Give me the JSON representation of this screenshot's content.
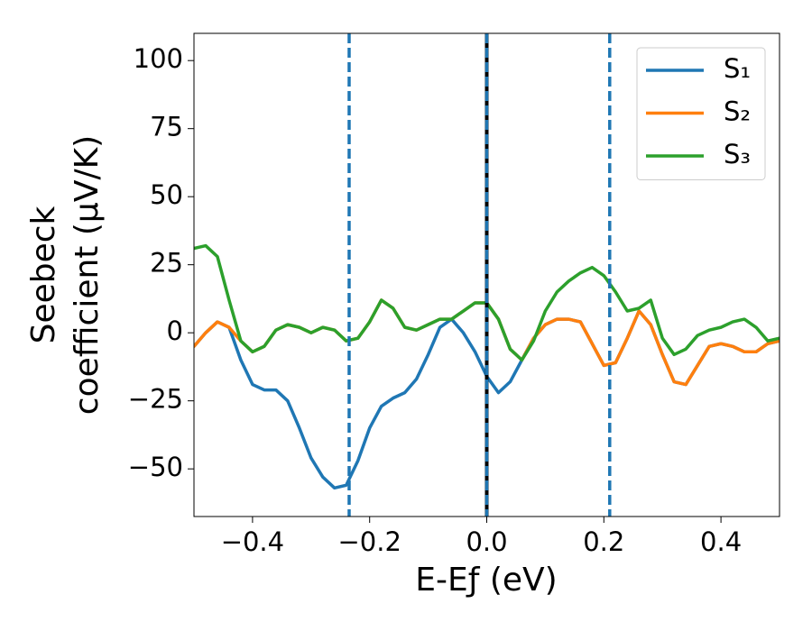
{
  "chart_data": {
    "type": "line",
    "xlabel": "E-Eƒ (eV)",
    "ylabel": [
      "Seebeck",
      "coefficient  (μV/K)"
    ],
    "x": [
      -0.5,
      -0.48,
      -0.46,
      -0.44,
      -0.42,
      -0.4,
      -0.38,
      -0.36,
      -0.34,
      -0.32,
      -0.3,
      -0.28,
      -0.26,
      -0.24,
      -0.22,
      -0.2,
      -0.18,
      -0.16,
      -0.14,
      -0.12,
      -0.1,
      -0.08,
      -0.06,
      -0.04,
      -0.02,
      0,
      0.02,
      0.04,
      0.06,
      0.08,
      0.1,
      0.12,
      0.14,
      0.16,
      0.18,
      0.2,
      0.22,
      0.24,
      0.26,
      0.28,
      0.3,
      0.32,
      0.34,
      0.36,
      0.38,
      0.4,
      0.42,
      0.44,
      0.46,
      0.48,
      0.5
    ],
    "series": [
      {
        "name": "S₁",
        "color": "#1f77b4",
        "values": [
          -5,
          0,
          4,
          2,
          -10,
          -19,
          -21,
          -21,
          -25,
          -35,
          -46,
          -53,
          -57,
          -56,
          -47,
          -35,
          -27,
          -24,
          -22,
          -17,
          -8,
          2,
          5,
          0,
          -7,
          -16,
          -22,
          -18,
          -10,
          -2,
          3,
          5,
          5,
          4,
          -4,
          -12,
          -11,
          -2,
          8,
          3,
          -8,
          -18,
          -19,
          -12,
          -5,
          -4,
          -5,
          -7,
          -7,
          -4,
          -3
        ]
      },
      {
        "name": "S₂",
        "color": "#ff7f0e",
        "values": [
          -5,
          0,
          4,
          2,
          -3,
          -7,
          -5,
          1,
          3,
          2,
          0,
          2,
          1,
          -3,
          -2,
          4,
          12,
          9,
          2,
          1,
          3,
          5,
          5,
          8,
          11,
          11,
          5,
          -6,
          -10,
          -2,
          3,
          5,
          5,
          4,
          -4,
          -12,
          -11,
          -2,
          8,
          3,
          -8,
          -18,
          -19,
          -12,
          -5,
          -4,
          -5,
          -7,
          -7,
          -4,
          -3
        ]
      },
      {
        "name": "S₃",
        "color": "#2ca02c",
        "values": [
          31,
          32,
          28,
          12,
          -3,
          -7,
          -5,
          1,
          3,
          2,
          0,
          2,
          1,
          -3,
          -2,
          4,
          12,
          9,
          2,
          1,
          3,
          5,
          5,
          8,
          11,
          11,
          5,
          -6,
          -10,
          -3,
          8,
          15,
          19,
          22,
          24,
          21,
          15,
          8,
          9,
          12,
          -2,
          -8,
          -6,
          -1,
          1,
          2,
          4,
          5,
          2,
          -3,
          -2
        ]
      }
    ],
    "vlines": [
      {
        "x": -0.235,
        "color": "#1f77b4",
        "style": "dashed"
      },
      {
        "x": 0,
        "color": "#000000",
        "style": "solid"
      },
      {
        "x": 0,
        "color": "#1f77b4",
        "style": "dashed"
      },
      {
        "x": 0.21,
        "color": "#1f77b4",
        "style": "dashed"
      }
    ],
    "xlim": [
      -0.5,
      0.5
    ],
    "xticks": [
      {
        "value": -0.4,
        "label": "−0.4"
      },
      {
        "value": -0.2,
        "label": "−0.2"
      },
      {
        "value": 0,
        "label": "0.0"
      },
      {
        "value": 0.2,
        "label": "0.2"
      },
      {
        "value": 0.4,
        "label": "0.4"
      }
    ],
    "ylim": [
      -67.5,
      110
    ],
    "yticks": [
      {
        "value": -50,
        "label": "−50"
      },
      {
        "value": -25,
        "label": "−25"
      },
      0,
      25,
      50,
      75,
      100
    ],
    "legend": "upper right"
  }
}
